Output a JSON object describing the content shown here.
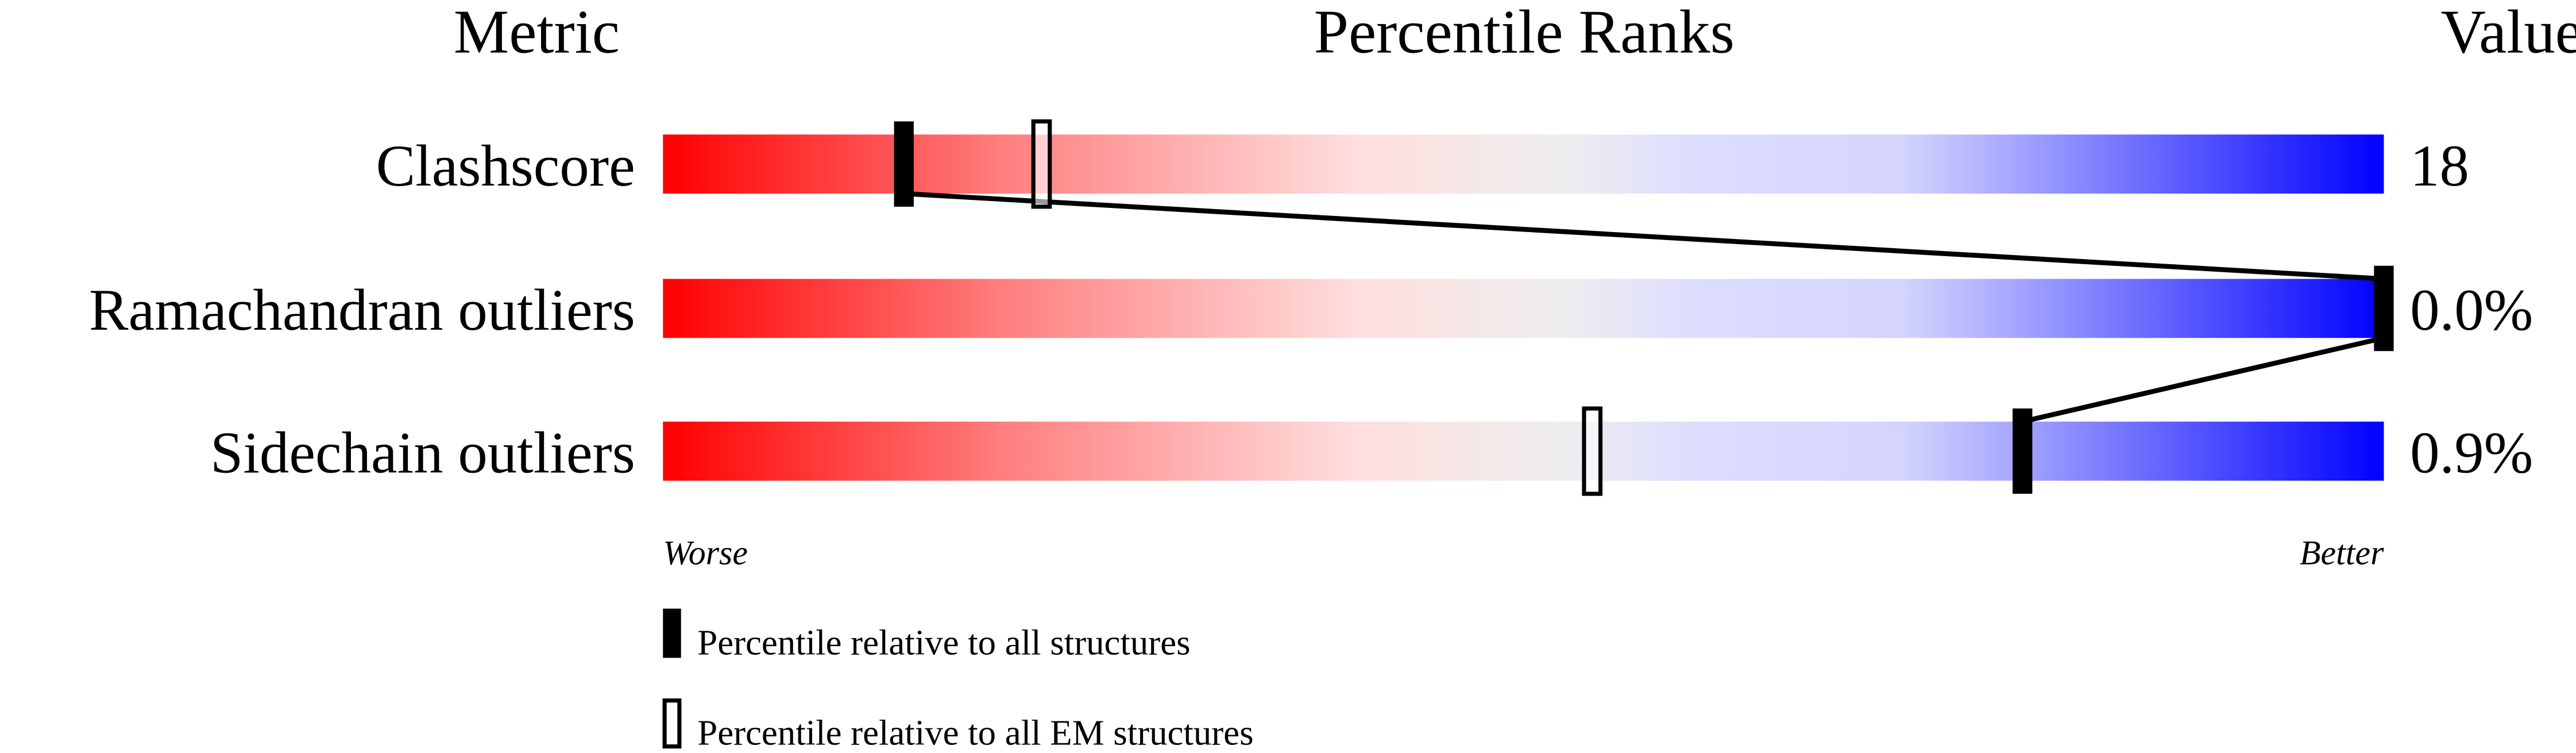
{
  "chart_data": {
    "type": "bar",
    "headers": {
      "metric": "Metric",
      "ranks": "Percentile Ranks",
      "value": "Value"
    },
    "xlim": [
      0,
      100
    ],
    "metrics": [
      {
        "name": "Clashscore",
        "value": "18",
        "percentile_all": 14,
        "percentile_em": 22
      },
      {
        "name": "Ramachandran outliers",
        "value": "0.0%",
        "percentile_all": 100,
        "percentile_em": null
      },
      {
        "name": "Sidechain outliers",
        "value": "0.9%",
        "percentile_all": 79,
        "percentile_em": 54
      }
    ],
    "axis_labels": {
      "worse": "Worse",
      "better": "Better"
    },
    "legend": {
      "all": "Percentile relative to all structures",
      "em": "Percentile relative to all EM structures"
    },
    "colors": {
      "worse": "#ff0000",
      "middle": "#eeeeee",
      "better": "#0000ff"
    }
  }
}
